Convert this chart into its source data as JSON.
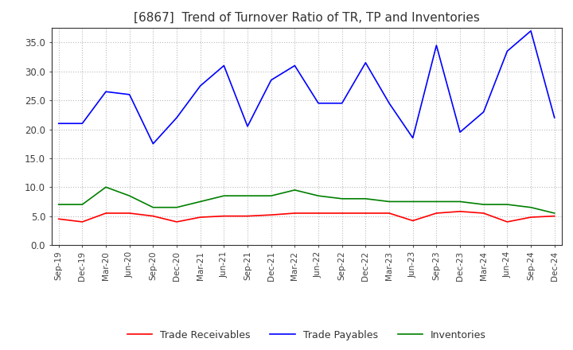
{
  "title": "[6867]  Trend of Turnover Ratio of TR, TP and Inventories",
  "title_fontsize": 11,
  "ylim": [
    0.0,
    37.5
  ],
  "yticks": [
    0.0,
    5.0,
    10.0,
    15.0,
    20.0,
    25.0,
    30.0,
    35.0
  ],
  "background_color": "#ffffff",
  "grid_color": "#bbbbbb",
  "dates": [
    "Sep-19",
    "Dec-19",
    "Mar-20",
    "Jun-20",
    "Sep-20",
    "Dec-20",
    "Mar-21",
    "Jun-21",
    "Sep-21",
    "Dec-21",
    "Mar-22",
    "Jun-22",
    "Sep-22",
    "Dec-22",
    "Mar-23",
    "Jun-23",
    "Sep-23",
    "Dec-23",
    "Mar-24",
    "Jun-24",
    "Sep-24",
    "Dec-24"
  ],
  "trade_receivables": [
    4.5,
    4.0,
    5.5,
    5.5,
    5.0,
    4.0,
    4.8,
    5.0,
    5.0,
    5.2,
    5.5,
    5.5,
    5.5,
    5.5,
    5.5,
    4.2,
    5.5,
    5.8,
    5.5,
    4.0,
    4.8,
    5.0
  ],
  "trade_payables": [
    21.0,
    21.0,
    26.5,
    26.0,
    17.5,
    22.0,
    27.5,
    31.0,
    20.5,
    28.5,
    31.0,
    24.5,
    24.5,
    31.5,
    24.5,
    18.5,
    34.5,
    19.5,
    23.0,
    33.5,
    37.0,
    22.0
  ],
  "inventories": [
    7.0,
    7.0,
    10.0,
    8.5,
    6.5,
    6.5,
    7.5,
    8.5,
    8.5,
    8.5,
    9.5,
    8.5,
    8.0,
    8.0,
    7.5,
    7.5,
    7.5,
    7.5,
    7.0,
    7.0,
    6.5,
    5.5
  ],
  "tr_color": "#ff0000",
  "tp_color": "#0000ff",
  "inv_color": "#008000",
  "line_width": 1.2,
  "legend_labels": [
    "Trade Receivables",
    "Trade Payables",
    "Inventories"
  ]
}
